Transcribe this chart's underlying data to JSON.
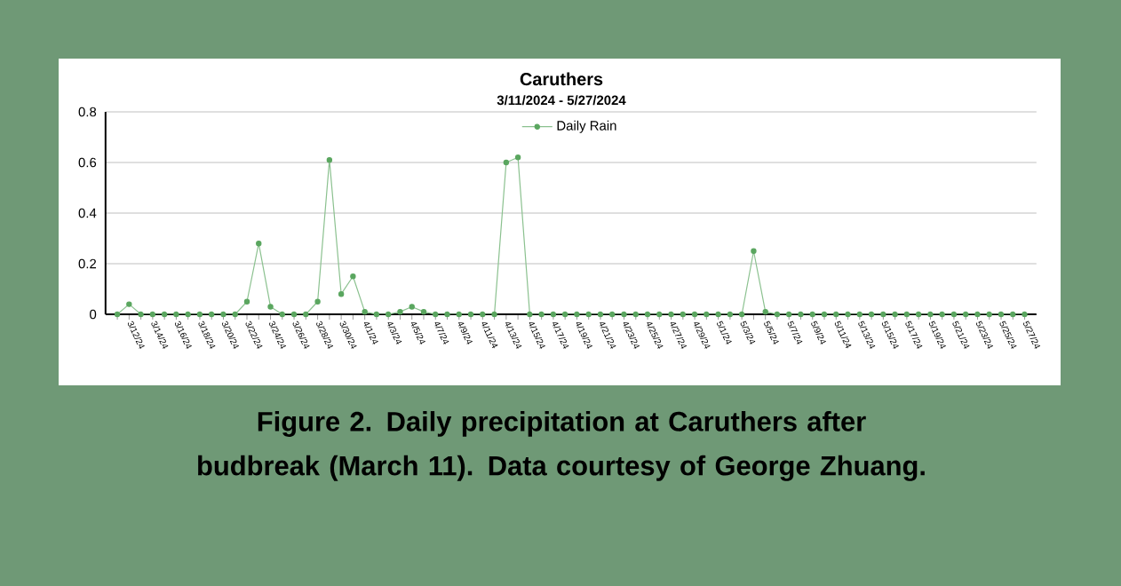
{
  "chart_data": {
    "type": "line",
    "title": "Caruthers",
    "subtitle": "3/11/2024 - 5/27/2024",
    "categories": [
      null,
      "3/12/24",
      null,
      "3/14/24",
      null,
      "3/16/24",
      null,
      "3/18/24",
      null,
      "3/20/24",
      null,
      "3/22/24",
      null,
      "3/24/24",
      null,
      "3/26/24",
      null,
      "3/28/24",
      null,
      "3/30/24",
      null,
      "4/1/24",
      null,
      "4/3/24",
      null,
      "4/5/24",
      null,
      "4/7/24",
      null,
      "4/9/24",
      null,
      "4/11/24",
      null,
      "4/13/24",
      null,
      "4/15/24",
      null,
      "4/17/24",
      null,
      "4/19/24",
      null,
      "4/21/24",
      null,
      "4/23/24",
      null,
      "4/25/24",
      null,
      "4/27/24",
      null,
      "4/29/24",
      null,
      "5/1/24",
      null,
      "5/3/24",
      null,
      "5/5/24",
      null,
      "5/7/24",
      null,
      "5/9/24",
      null,
      "5/11/24",
      null,
      "5/13/24",
      null,
      "5/15/24",
      null,
      "5/17/24",
      null,
      "5/19/24",
      null,
      "5/21/24",
      null,
      "5/23/24",
      null,
      "5/25/24",
      null,
      "5/27/24"
    ],
    "series": [
      {
        "name": "Daily Rain",
        "color": "#5aa65f",
        "values": [
          0,
          0.04,
          0,
          0,
          0,
          0,
          0,
          0,
          0,
          0,
          0,
          0.05,
          0.28,
          0.03,
          0,
          0,
          0,
          0.05,
          0.61,
          0.08,
          0.15,
          0.01,
          0,
          0,
          0.01,
          0.03,
          0.01,
          0,
          0,
          0,
          0,
          0,
          0,
          0.6,
          0.62,
          0,
          0,
          0,
          0,
          0,
          0,
          0,
          0,
          0,
          0,
          0,
          0,
          0,
          0,
          0,
          0,
          0,
          0,
          0,
          0.25,
          0.01,
          0,
          0,
          0,
          0,
          0,
          0,
          0,
          0,
          0,
          0,
          0,
          0,
          0,
          0,
          0,
          0,
          0,
          0,
          0,
          0,
          0,
          0
        ]
      }
    ],
    "ylim": [
      0,
      0.8
    ],
    "yticks": [
      0,
      0.2,
      0.4,
      0.6,
      0.8
    ],
    "grid": "y",
    "legend": "top",
    "marker": "circle",
    "line_style": "solid",
    "annotations": [
      "Figure 2. Daily precipitation at Caruthers after budbreak (March 11). Data courtesy of George Zhuang."
    ]
  }
}
